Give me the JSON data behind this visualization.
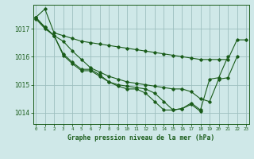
{
  "title": "Graphe pression niveau de la mer (hPa)",
  "bg_color": "#cfe8e8",
  "grid_color": "#9dbfbf",
  "line_color": "#1a5c1a",
  "marker": "D",
  "marker_size": 1.8,
  "line_width": 0.8,
  "xlim": [
    -0.3,
    23.3
  ],
  "ylim": [
    1013.6,
    1017.85
  ],
  "yticks": [
    1014,
    1015,
    1016,
    1017
  ],
  "xticks": [
    0,
    1,
    2,
    3,
    4,
    5,
    6,
    7,
    8,
    9,
    10,
    11,
    12,
    13,
    14,
    15,
    16,
    17,
    18,
    19,
    20,
    21,
    22,
    23
  ],
  "series": [
    [
      1017.4,
      1017.7,
      1016.85,
      1016.75,
      1016.65,
      1016.55,
      1016.5,
      1016.45,
      1016.4,
      1016.35,
      1016.3,
      1016.25,
      1016.2,
      1016.15,
      1016.1,
      1016.05,
      1016.0,
      1015.95,
      1015.9,
      1015.9,
      1015.9,
      1015.9,
      1016.6,
      1016.6
    ],
    [
      1017.4,
      1017.05,
      1016.75,
      1016.55,
      1016.2,
      1015.9,
      1015.6,
      1015.45,
      1015.3,
      1015.2,
      1015.1,
      1015.05,
      1015.0,
      1014.95,
      1014.9,
      1014.85,
      1014.85,
      1014.75,
      1014.5,
      1014.4,
      1015.2,
      1015.25,
      1016.0,
      null
    ],
    [
      1017.4,
      1017.05,
      1016.75,
      1016.1,
      1015.8,
      1015.55,
      1015.55,
      1015.35,
      1015.1,
      1015.0,
      1014.95,
      1014.9,
      1014.85,
      1014.7,
      1014.4,
      1014.1,
      1014.15,
      1014.35,
      1014.1,
      1015.2,
      1015.25,
      1016.0,
      null,
      null
    ],
    [
      1017.35,
      1017.0,
      1016.75,
      1016.05,
      1015.75,
      1015.5,
      1015.5,
      1015.3,
      1015.1,
      1014.95,
      1014.85,
      1014.85,
      1014.7,
      1014.4,
      1014.1,
      1014.1,
      1014.15,
      1014.3,
      1014.05,
      null,
      null,
      null,
      null,
      null
    ]
  ]
}
